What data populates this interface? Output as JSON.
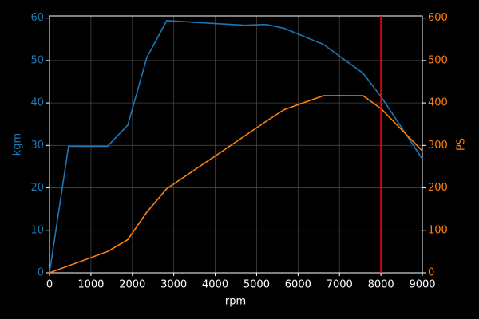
{
  "chart_data": {
    "type": "line",
    "x_label": "rpm",
    "y_label": "kgm",
    "y2_label": "PS",
    "series": [
      {
        "name": "kgm",
        "color": "#1f77b4",
        "x": [
          0,
          460,
          1400,
          1890,
          2350,
          2830,
          4000,
          4720,
          5220,
          5660,
          6610,
          7570,
          8010,
          9000
        ],
        "values": [
          0,
          29.8,
          29.8,
          34.8,
          50.7,
          59.4,
          58.7,
          58.3,
          58.5,
          57.6,
          53.8,
          47.0,
          41.4,
          26.8
        ]
      },
      {
        "name": "PS",
        "color": "#ff7f0e",
        "axis": "y2",
        "x": [
          0,
          1400,
          1890,
          2350,
          2830,
          4000,
          5220,
          5660,
          6610,
          7570,
          8010,
          9000
        ],
        "values": [
          0,
          50,
          78,
          143,
          198,
          275,
          356,
          384,
          417,
          417,
          386,
          287
        ]
      }
    ],
    "vline": {
      "x": 8000,
      "color": "#ff0000"
    },
    "xlim": [
      0,
      9000
    ],
    "xticks": [
      0,
      1000,
      2000,
      3000,
      4000,
      5000,
      6000,
      7000,
      8000,
      9000
    ],
    "ylim": [
      0,
      60.5
    ],
    "yticks": [
      0,
      10,
      20,
      30,
      40,
      50,
      60
    ],
    "y2lim": [
      0,
      605
    ],
    "y2ticks": [
      0,
      100,
      200,
      300,
      400,
      500,
      600
    ],
    "grid": true
  }
}
